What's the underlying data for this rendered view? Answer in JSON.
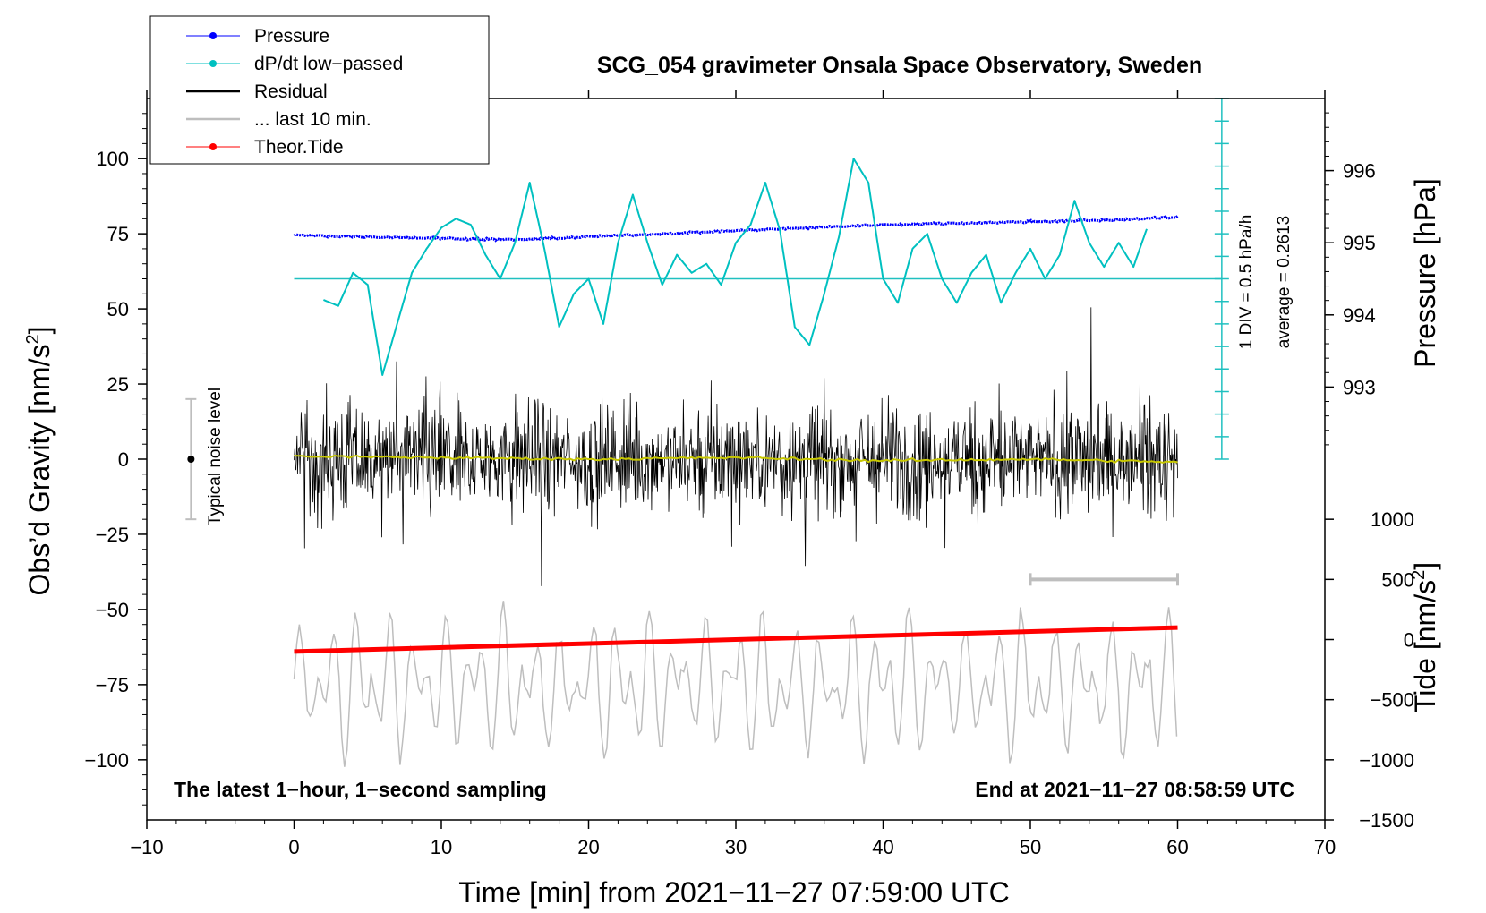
{
  "chart_data": {
    "type": "line",
    "title": "SCG_054 gravimeter Onsala Space Observatory, Sweden",
    "xlabel": "Time [min] from 2021−11−27 07:59:00 UTC",
    "ylabel_main": "Obs’d Gravity [nm/s",
    "ylabel_main_sup": "2",
    "ylabel_main_end": "]",
    "ylabel_pressure": "Pressure [hPa]",
    "ylabel_tide": "Tide [nm/s",
    "ylabel_tide_sup": "2",
    "ylabel_tide_end": "]",
    "xlim": [
      -10,
      70
    ],
    "ylim": [
      -120,
      120
    ],
    "x_ticks": [
      {
        "value": -10,
        "label": "−10"
      },
      {
        "value": 0,
        "label": "0"
      },
      {
        "value": 10,
        "label": "10"
      },
      {
        "value": 20,
        "label": "20"
      },
      {
        "value": 30,
        "label": "30"
      },
      {
        "value": 40,
        "label": "40"
      },
      {
        "value": 50,
        "label": "50"
      },
      {
        "value": 60,
        "label": "60"
      },
      {
        "value": 70,
        "label": "70"
      }
    ],
    "y_ticks": [
      {
        "value": 100,
        "label": "100"
      },
      {
        "value": 75,
        "label": "75"
      },
      {
        "value": 50,
        "label": "50"
      },
      {
        "value": 25,
        "label": "25"
      },
      {
        "value": 0,
        "label": "0"
      },
      {
        "value": -25,
        "label": "−25"
      },
      {
        "value": -50,
        "label": "−50"
      },
      {
        "value": -75,
        "label": "−75"
      },
      {
        "value": -100,
        "label": "−100"
      }
    ],
    "pressure_axis": {
      "ticks": [
        {
          "value": 996,
          "label": "996"
        },
        {
          "value": 995,
          "label": "995"
        },
        {
          "value": 994,
          "label": "994"
        },
        {
          "value": 993,
          "label": "993"
        }
      ],
      "gravity_at_996": 96,
      "gravity_per_hpa": 24
    },
    "tide_axis": {
      "ticks": [
        {
          "value": 1000,
          "label": "1000"
        },
        {
          "value": 500,
          "label": "500"
        },
        {
          "value": 0,
          "label": "0"
        },
        {
          "value": -500,
          "label": "−500"
        },
        {
          "value": -1000,
          "label": "−1000"
        },
        {
          "value": -1500,
          "label": "−1500"
        }
      ],
      "gravity_at_zero": -60,
      "gravity_per_unit": 0.04
    },
    "legend": [
      {
        "label": "Pressure",
        "color": "#0000ff",
        "marker": true
      },
      {
        "label": "dP/dt low−passed",
        "color": "#00c0c0",
        "marker": true
      },
      {
        "label": "Residual",
        "color": "#000000",
        "marker": false
      },
      {
        "label": "... last 10 min.",
        "color": "#bebebe",
        "marker": false
      },
      {
        "label": "Theor.Tide",
        "color": "#ff0000",
        "marker": true
      }
    ],
    "series": [
      {
        "name": "Pressure",
        "color": "#0000ff",
        "x": [
          0,
          5,
          10,
          15,
          20,
          25,
          30,
          35,
          40,
          45,
          50,
          55,
          60
        ],
        "y": [
          74.5,
          74,
          73.5,
          73,
          74,
          75,
          76,
          77,
          78,
          78.5,
          79,
          79.5,
          80.5
        ]
      },
      {
        "name": "dP/dt low−passed",
        "color": "#00c0c0",
        "x": [
          2,
          3,
          4,
          5,
          6,
          7,
          8,
          9,
          10,
          11,
          12,
          13,
          14,
          15,
          16,
          17,
          18,
          19,
          20,
          21,
          22,
          23,
          24,
          25,
          26,
          27,
          28,
          29,
          30,
          31,
          32,
          33,
          34,
          35,
          36,
          37,
          38,
          39,
          40,
          41,
          42,
          43,
          44,
          45,
          46,
          47,
          48,
          49,
          50,
          51,
          52,
          53,
          54,
          55,
          56,
          57,
          58
        ],
        "y": [
          53,
          51,
          62,
          58,
          28,
          45,
          62,
          70,
          77,
          80,
          78,
          68,
          60,
          72,
          92,
          70,
          44,
          55,
          60,
          45,
          72,
          88,
          72,
          58,
          68,
          62,
          65,
          58,
          72,
          78,
          92,
          76,
          44,
          38,
          55,
          74,
          100,
          92,
          60,
          52,
          70,
          75,
          60,
          52,
          62,
          68,
          52,
          62,
          70,
          60,
          68,
          86,
          72,
          64,
          72,
          64,
          78
        ]
      },
      {
        "name": "Residual",
        "color": "#000000",
        "x": [
          0,
          60
        ],
        "y": [
          0,
          0
        ]
      },
      {
        "name": "Residual smoothed",
        "color": "#c8c800",
        "x": [
          0,
          10,
          20,
          30,
          40,
          50,
          60
        ],
        "y": [
          1,
          0.5,
          0,
          0.5,
          -0.5,
          0,
          -1
        ]
      },
      {
        "name": "... last 10 min.",
        "color": "#bebebe",
        "x": [
          0,
          60
        ],
        "y": [
          -75,
          -75
        ]
      },
      {
        "name": "Theor.Tide",
        "color": "#ff0000",
        "x": [
          0,
          60
        ],
        "y": [
          -64,
          -56
        ]
      }
    ],
    "pressure_scale": {
      "label_div": "1 DIV = 0.5 hPa/h",
      "label_avg": "average = 0.2613",
      "x": 63,
      "y_top": 120,
      "y_bottom": 0,
      "baseline_y": 60,
      "div_step": 7.5
    },
    "noise_bar": {
      "label": "Typical noise level",
      "x": -7,
      "y": 0,
      "half_range": 20
    },
    "last10_bar": {
      "x_start": 50,
      "x_end": 60,
      "y": -40
    },
    "annotations": {
      "left": "The latest 1−hour, 1−second sampling",
      "right": "End at 2021−11−27 08:58:59 UTC"
    }
  }
}
